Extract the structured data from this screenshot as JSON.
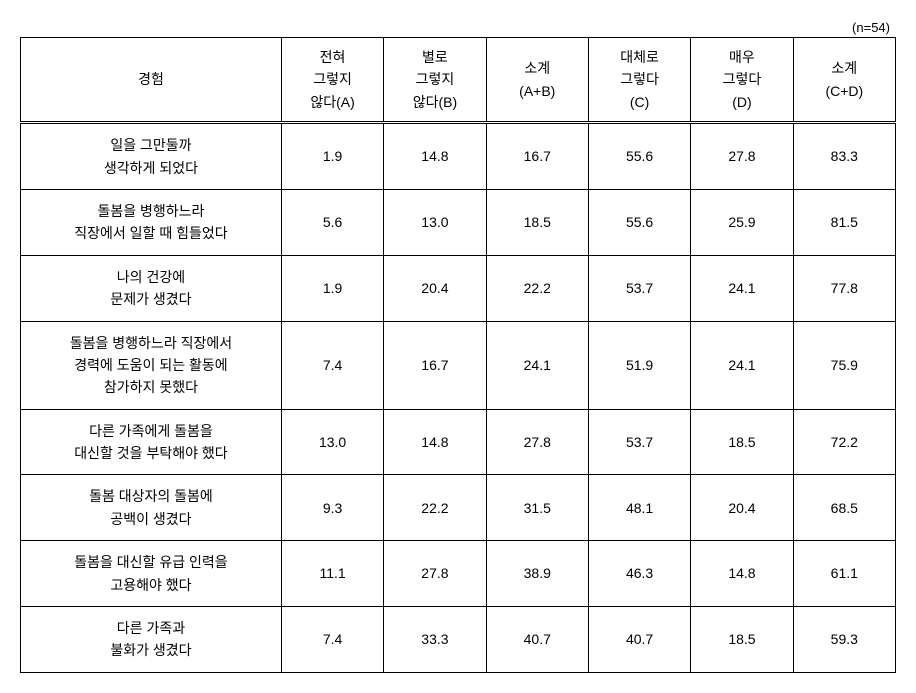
{
  "note": "(n=54)",
  "headers": {
    "experience": "경험",
    "colA_line1": "전혀",
    "colA_line2": "그렇지",
    "colA_line3": "않다(A)",
    "colB_line1": "별로",
    "colB_line2": "그렇지",
    "colB_line3": "않다(B)",
    "colAB_line1": "소계",
    "colAB_line2": "(A+B)",
    "colC_line1": "대체로",
    "colC_line2": "그렇다",
    "colC_line3": "(C)",
    "colD_line1": "매우",
    "colD_line2": "그렇다",
    "colD_line3": "(D)",
    "colCD_line1": "소계",
    "colCD_line2": "(C+D)"
  },
  "rows": [
    {
      "label_line1": "일을 그만둘까",
      "label_line2": "생각하게 되었다",
      "a": "1.9",
      "b": "14.8",
      "ab": "16.7",
      "c": "55.6",
      "d": "27.8",
      "cd": "83.3"
    },
    {
      "label_line1": "돌봄을 병행하느라",
      "label_line2": "직장에서 일할 때 힘들었다",
      "a": "5.6",
      "b": "13.0",
      "ab": "18.5",
      "c": "55.6",
      "d": "25.9",
      "cd": "81.5"
    },
    {
      "label_line1": "나의 건강에",
      "label_line2": "문제가 생겼다",
      "a": "1.9",
      "b": "20.4",
      "ab": "22.2",
      "c": "53.7",
      "d": "24.1",
      "cd": "77.8"
    },
    {
      "label_line1": "돌봄을 병행하느라 직장에서",
      "label_line2": "경력에 도움이 되는 활동에",
      "label_line3": "참가하지 못했다",
      "a": "7.4",
      "b": "16.7",
      "ab": "24.1",
      "c": "51.9",
      "d": "24.1",
      "cd": "75.9"
    },
    {
      "label_line1": "다른 가족에게 돌봄을",
      "label_line2": "대신할 것을 부탁해야 했다",
      "a": "13.0",
      "b": "14.8",
      "ab": "27.8",
      "c": "53.7",
      "d": "18.5",
      "cd": "72.2"
    },
    {
      "label_line1": "돌봄 대상자의 돌봄에",
      "label_line2": "공백이 생겼다",
      "a": "9.3",
      "b": "22.2",
      "ab": "31.5",
      "c": "48.1",
      "d": "20.4",
      "cd": "68.5"
    },
    {
      "label_line1": "돌봄을 대신할 유급 인력을",
      "label_line2": "고용해야 했다",
      "a": "11.1",
      "b": "27.8",
      "ab": "38.9",
      "c": "46.3",
      "d": "14.8",
      "cd": "61.1"
    },
    {
      "label_line1": "다른 가족과",
      "label_line2": "불화가 생겼다",
      "a": "7.4",
      "b": "33.3",
      "ab": "40.7",
      "c": "40.7",
      "d": "18.5",
      "cd": "59.3"
    }
  ]
}
